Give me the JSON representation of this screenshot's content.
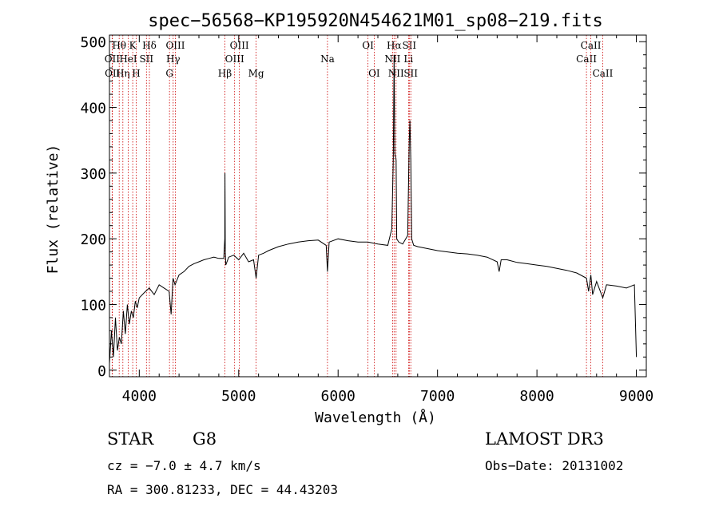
{
  "chart_data": {
    "type": "line",
    "title": "spec−56568−KP195920N454621M01_sp08−219.fits",
    "xlabel": "Wavelength (Å)",
    "ylabel": "Flux (relative)",
    "xlim": [
      3700,
      9100
    ],
    "ylim": [
      -10,
      510
    ],
    "xticks": [
      4000,
      5000,
      6000,
      7000,
      8000,
      9000
    ],
    "xtick_labels": [
      "4000",
      "5000",
      "6000",
      "7000",
      "8000",
      "9000"
    ],
    "yticks": [
      0,
      100,
      200,
      300,
      400,
      500
    ],
    "ytick_labels": [
      "0",
      "100",
      "200",
      "300",
      "400",
      "500"
    ],
    "series": [
      {
        "name": "flux",
        "x": [
          3700,
          3720,
          3740,
          3760,
          3780,
          3800,
          3820,
          3840,
          3860,
          3880,
          3900,
          3920,
          3940,
          3960,
          3980,
          4000,
          4050,
          4100,
          4150,
          4200,
          4250,
          4300,
          4320,
          4340,
          4360,
          4400,
          4450,
          4500,
          4550,
          4600,
          4650,
          4700,
          4750,
          4800,
          4850,
          4860,
          4862,
          4865,
          4870,
          4900,
          4950,
          5000,
          5050,
          5100,
          5150,
          5175,
          5200,
          5250,
          5300,
          5400,
          5500,
          5600,
          5700,
          5800,
          5880,
          5893,
          5910,
          6000,
          6100,
          6200,
          6300,
          6400,
          6500,
          6540,
          6555,
          6563,
          6570,
          6583,
          6590,
          6610,
          6650,
          6700,
          6716,
          6722,
          6731,
          6740,
          6760,
          6800,
          6900,
          7000,
          7100,
          7200,
          7300,
          7400,
          7500,
          7600,
          7620,
          7640,
          7700,
          7800,
          7900,
          8000,
          8100,
          8200,
          8300,
          8400,
          8498,
          8520,
          8542,
          8560,
          8600,
          8662,
          8700,
          8800,
          8900,
          8980,
          9000
        ],
        "values": [
          10,
          60,
          20,
          80,
          30,
          50,
          40,
          90,
          55,
          100,
          70,
          90,
          80,
          105,
          95,
          110,
          118,
          125,
          115,
          130,
          125,
          120,
          85,
          140,
          130,
          145,
          150,
          158,
          162,
          165,
          168,
          170,
          172,
          170,
          170,
          200,
          300,
          180,
          160,
          172,
          175,
          168,
          178,
          165,
          168,
          140,
          175,
          178,
          182,
          188,
          192,
          195,
          197,
          198,
          190,
          150,
          195,
          200,
          197,
          195,
          195,
          192,
          190,
          215,
          320,
          480,
          330,
          320,
          200,
          195,
          192,
          205,
          350,
          380,
          320,
          200,
          190,
          188,
          185,
          182,
          180,
          178,
          177,
          175,
          172,
          165,
          150,
          168,
          168,
          164,
          162,
          160,
          158,
          155,
          152,
          148,
          140,
          120,
          145,
          115,
          135,
          110,
          130,
          128,
          125,
          130,
          20
        ]
      }
    ],
    "line_markers": [
      {
        "label": "OII",
        "wave": 3727,
        "row": 1
      },
      {
        "label": "OII",
        "wave": 3730,
        "row": 2
      },
      {
        "label": "Hθ",
        "wave": 3798,
        "row": 0
      },
      {
        "label": "Hη",
        "wave": 3835,
        "row": 2
      },
      {
        "label": "HeI",
        "wave": 3889,
        "row": 1
      },
      {
        "label": "K",
        "wave": 3934,
        "row": 0
      },
      {
        "label": "H",
        "wave": 3969,
        "row": 2
      },
      {
        "label": "SII",
        "wave": 4072,
        "row": 1
      },
      {
        "label": "Hδ",
        "wave": 4102,
        "row": 0
      },
      {
        "label": "G",
        "wave": 4304,
        "row": 2
      },
      {
        "label": "Hγ",
        "wave": 4341,
        "row": 1
      },
      {
        "label": "OIII",
        "wave": 4363,
        "row": 0
      },
      {
        "label": "Hβ",
        "wave": 4861,
        "row": 2
      },
      {
        "label": "OIII",
        "wave": 4959,
        "row": 1
      },
      {
        "label": "OIII",
        "wave": 5007,
        "row": 0
      },
      {
        "label": "Mg",
        "wave": 5175,
        "row": 2
      },
      {
        "label": "Na",
        "wave": 5893,
        "row": 1
      },
      {
        "label": "OI",
        "wave": 6300,
        "row": 0
      },
      {
        "label": "OI",
        "wave": 6363,
        "row": 2
      },
      {
        "label": "NII",
        "wave": 6548,
        "row": 1
      },
      {
        "label": "Hα",
        "wave": 6563,
        "row": 0
      },
      {
        "label": "NII",
        "wave": 6583,
        "row": 2
      },
      {
        "label": "Li",
        "wave": 6708,
        "row": 1
      },
      {
        "label": "SII",
        "wave": 6716,
        "row": 0
      },
      {
        "label": "SII",
        "wave": 6731,
        "row": 2
      },
      {
        "label": "CaII",
        "wave": 8498,
        "row": 1
      },
      {
        "label": "CaII",
        "wave": 8542,
        "row": 0
      },
      {
        "label": "CaII",
        "wave": 8662,
        "row": 2
      }
    ],
    "colors": {
      "spectrum": "#000000",
      "markers": "#cc0000",
      "axes": "#000000"
    }
  },
  "info": {
    "object_class": "STAR",
    "subclass": "G8",
    "survey": "LAMOST DR3",
    "cz": "cz = −7.0 ± 4.7 km/s",
    "obs_date": "Obs−Date: 20131002",
    "coords": "RA = 300.81233, DEC =  44.43203"
  }
}
